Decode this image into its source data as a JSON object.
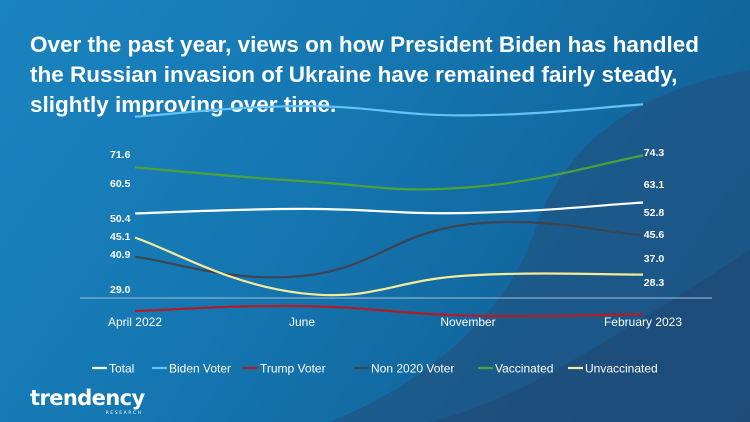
{
  "title": "Over the past year, views on how President Biden has handled the Russian invasion of Ukraine have remained fairly steady, slightly improving over time.",
  "logo": {
    "name": "trendency",
    "tagline": "RESEARCH"
  },
  "colors": {
    "background": "#1577b2",
    "axis": "#9fc3dc"
  },
  "chart_data": {
    "type": "line",
    "categories": [
      "April 2022",
      "June",
      "November",
      "February 2023"
    ],
    "legend_position": "bottom",
    "grid": false,
    "series": [
      {
        "name": "Total",
        "values": [
          50.4,
          51.4,
          50.5,
          52.8
        ],
        "color": "#ffffff",
        "labels": [
          "50.4",
          "52.8"
        ]
      },
      {
        "name": "Biden Voter",
        "values": [
          71.6,
          73.9,
          71.9,
          74.3
        ],
        "color": "#64c3f4",
        "labels": [
          "71.6",
          "74.3"
        ]
      },
      {
        "name": "Trump Voter",
        "values": [
          29.0,
          30.1,
          28.0,
          28.3
        ],
        "color": "#b41c24",
        "labels": [
          "29.0",
          "28.3"
        ]
      },
      {
        "name": "Non 2020 Voter",
        "values": [
          40.9,
          36.7,
          48.0,
          45.6
        ],
        "color": "#3d4552",
        "labels": [
          "40.9",
          "45.6"
        ]
      },
      {
        "name": "Vaccinated",
        "values": [
          60.5,
          57.5,
          56.1,
          63.1
        ],
        "color": "#4ca23a",
        "labels": [
          "60.5",
          "63.1"
        ]
      },
      {
        "name": "Unvaccinated",
        "values": [
          45.1,
          32.9,
          36.8,
          37.0
        ],
        "color": "#f5ec9a",
        "labels": [
          "45.1",
          "37.0"
        ]
      }
    ]
  }
}
